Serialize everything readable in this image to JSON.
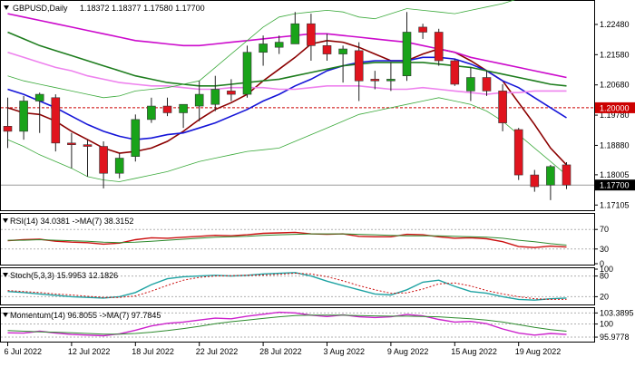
{
  "header": {
    "symbol": "GBPUSD,Daily",
    "ohlc": "1.18372 1.18377 1.17580 1.17700"
  },
  "colors": {
    "bull": "#19a319",
    "bear": "#e0141e",
    "wick": "#222222",
    "sma_fast": "#8b0000",
    "ma_blue": "#1515d8",
    "ma_magenta": "#cc0acc",
    "ma_green": "#1e7d1e",
    "ma_pink": "#ee82ee",
    "bollinger": "#3caa3c",
    "level_red": "#cc0000",
    "price_tag_bg": "#000000",
    "level_tag_bg": "#cc0000"
  },
  "price_axis": {
    "ylim": [
      1.1695,
      1.2318
    ],
    "ticks": [
      "1.22480",
      "1.21580",
      "1.20680",
      "1.19780",
      "1.18880",
      "1.18005",
      "1.17105"
    ],
    "tick_values": [
      1.2248,
      1.2158,
      1.2068,
      1.1978,
      1.1888,
      1.18005,
      1.17105
    ],
    "level_label": "1.20000",
    "level_value": 1.2,
    "current_label": "1.17700",
    "current_value": 1.177
  },
  "x_axis": {
    "labels": [
      "6 Jul 2022",
      "12 Jul 2022",
      "18 Jul 2022",
      "22 Jul 2022",
      "28 Jul 2022",
      "3 Aug 2022",
      "9 Aug 2022",
      "15 Aug 2022",
      "19 Aug 2022"
    ],
    "label_index": [
      0,
      4,
      8,
      12,
      16,
      20,
      24,
      28,
      32
    ]
  },
  "chart_data": [
    {
      "type": "candlestick",
      "ylim": [
        1.1695,
        1.2318
      ],
      "candles": [
        {
          "o": 1.1945,
          "h": 1.203,
          "l": 1.188,
          "c": 1.193
        },
        {
          "o": 1.193,
          "h": 1.2035,
          "l": 1.1905,
          "c": 1.202
        },
        {
          "o": 1.202,
          "h": 1.2045,
          "l": 1.1925,
          "c": 1.204
        },
        {
          "o": 1.203,
          "h": 1.204,
          "l": 1.187,
          "c": 1.1895
        },
        {
          "o": 1.1895,
          "h": 1.1925,
          "l": 1.182,
          "c": 1.189
        },
        {
          "o": 1.189,
          "h": 1.1905,
          "l": 1.1795,
          "c": 1.1885
        },
        {
          "o": 1.1885,
          "h": 1.19,
          "l": 1.176,
          "c": 1.1805
        },
        {
          "o": 1.1805,
          "h": 1.1865,
          "l": 1.179,
          "c": 1.185
        },
        {
          "o": 1.1855,
          "h": 1.198,
          "l": 1.184,
          "c": 1.1965
        },
        {
          "o": 1.1965,
          "h": 1.203,
          "l": 1.1955,
          "c": 1.2005
        },
        {
          "o": 1.2005,
          "h": 1.203,
          "l": 1.1975,
          "c": 1.1985
        },
        {
          "o": 1.1985,
          "h": 1.201,
          "l": 1.194,
          "c": 1.201
        },
        {
          "o": 1.2005,
          "h": 1.208,
          "l": 1.196,
          "c": 1.204
        },
        {
          "o": 1.201,
          "h": 1.2095,
          "l": 1.199,
          "c": 1.2055
        },
        {
          "o": 1.205,
          "h": 1.2085,
          "l": 1.202,
          "c": 1.204
        },
        {
          "o": 1.204,
          "h": 1.2185,
          "l": 1.203,
          "c": 1.2165
        },
        {
          "o": 1.2165,
          "h": 1.2215,
          "l": 1.2125,
          "c": 1.219
        },
        {
          "o": 1.218,
          "h": 1.2215,
          "l": 1.216,
          "c": 1.2195
        },
        {
          "o": 1.219,
          "h": 1.2285,
          "l": 1.219,
          "c": 1.225
        },
        {
          "o": 1.225,
          "h": 1.228,
          "l": 1.214,
          "c": 1.2185
        },
        {
          "o": 1.2185,
          "h": 1.222,
          "l": 1.214,
          "c": 1.216
        },
        {
          "o": 1.216,
          "h": 1.2185,
          "l": 1.2075,
          "c": 1.2175
        },
        {
          "o": 1.217,
          "h": 1.2195,
          "l": 1.202,
          "c": 1.208
        },
        {
          "o": 1.2085,
          "h": 1.211,
          "l": 1.2055,
          "c": 1.208
        },
        {
          "o": 1.208,
          "h": 1.2135,
          "l": 1.205,
          "c": 1.2085
        },
        {
          "o": 1.2095,
          "h": 1.2285,
          "l": 1.208,
          "c": 1.2225
        },
        {
          "o": 1.224,
          "h": 1.225,
          "l": 1.2205,
          "c": 1.2225
        },
        {
          "o": 1.2225,
          "h": 1.2235,
          "l": 1.2125,
          "c": 1.214
        },
        {
          "o": 1.214,
          "h": 1.2145,
          "l": 1.2065,
          "c": 1.207
        },
        {
          "o": 1.205,
          "h": 1.212,
          "l": 1.202,
          "c": 1.209
        },
        {
          "o": 1.209,
          "h": 1.211,
          "l": 1.2035,
          "c": 1.205
        },
        {
          "o": 1.205,
          "h": 1.207,
          "l": 1.193,
          "c": 1.1955
        },
        {
          "o": 1.1935,
          "h": 1.194,
          "l": 1.1785,
          "c": 1.18
        },
        {
          "o": 1.18,
          "h": 1.1815,
          "l": 1.175,
          "c": 1.1765
        },
        {
          "o": 1.177,
          "h": 1.183,
          "l": 1.1725,
          "c": 1.1825
        },
        {
          "o": 1.183,
          "h": 1.1838,
          "l": 1.1758,
          "c": 1.177
        }
      ],
      "lines": [
        {
          "role": "sma_fast",
          "values": [
            1.2,
            1.1985,
            1.198,
            1.196,
            1.193,
            1.1905,
            1.188,
            1.1865,
            1.187,
            1.188,
            1.19,
            1.193,
            1.1965,
            1.1995,
            1.2015,
            1.204,
            1.208,
            1.2115,
            1.215,
            1.219,
            1.22,
            1.2195,
            1.218,
            1.216,
            1.214,
            1.214,
            1.216,
            1.2175,
            1.2165,
            1.214,
            1.211,
            1.208,
            1.2015,
            1.195,
            1.188,
            1.183
          ]
        },
        {
          "role": "ma_blue",
          "values": [
            1.2055,
            1.204,
            1.202,
            1.2,
            1.1975,
            1.195,
            1.193,
            1.1915,
            1.1905,
            1.191,
            1.192,
            1.1925,
            1.194,
            1.1955,
            1.1975,
            1.1995,
            1.202,
            1.204,
            1.2065,
            1.2085,
            1.211,
            1.2125,
            1.2135,
            1.214,
            1.214,
            1.214,
            1.215,
            1.215,
            1.2145,
            1.213,
            1.211,
            1.208,
            1.206,
            1.203,
            1.2,
            1.197
          ]
        },
        {
          "role": "ma_magenta",
          "values": [
            1.228,
            1.227,
            1.226,
            1.225,
            1.224,
            1.223,
            1.222,
            1.221,
            1.22,
            1.2195,
            1.219,
            1.2185,
            1.2185,
            1.219,
            1.2195,
            1.22,
            1.2205,
            1.221,
            1.2215,
            1.222,
            1.222,
            1.2215,
            1.221,
            1.2205,
            1.22,
            1.2195,
            1.2185,
            1.2175,
            1.2165,
            1.215,
            1.214,
            1.213,
            1.212,
            1.211,
            1.21,
            1.209
          ]
        },
        {
          "role": "ma_green",
          "values": [
            1.2225,
            1.2205,
            1.2185,
            1.217,
            1.2155,
            1.214,
            1.2125,
            1.211,
            1.2095,
            1.2085,
            1.2075,
            1.207,
            1.2065,
            1.2065,
            1.207,
            1.2075,
            1.208,
            1.2085,
            1.2095,
            1.2105,
            1.2115,
            1.2125,
            1.213,
            1.2135,
            1.2135,
            1.2135,
            1.2135,
            1.213,
            1.2125,
            1.212,
            1.211,
            1.21,
            1.209,
            1.208,
            1.207,
            1.2065
          ]
        },
        {
          "role": "ma_pink",
          "values": [
            1.2165,
            1.215,
            1.2135,
            1.212,
            1.211,
            1.2095,
            1.2085,
            1.2075,
            1.207,
            1.2065,
            1.2065,
            1.206,
            1.2055,
            1.2055,
            1.206,
            1.206,
            1.206,
            1.2055,
            1.2055,
            1.206,
            1.2065,
            1.2065,
            1.2065,
            1.206,
            1.2055,
            1.2055,
            1.206,
            1.2055,
            1.205,
            1.2045,
            1.204,
            1.2045,
            1.2045,
            1.205,
            1.205,
            1.205
          ]
        },
        {
          "role": "bollinger",
          "values": [
            1.2095,
            1.208,
            1.207,
            1.206,
            1.205,
            1.204,
            1.203,
            1.2035,
            1.205,
            1.2055,
            1.206,
            1.207,
            1.208,
            1.212,
            1.216,
            1.22,
            1.224,
            1.227,
            1.228,
            1.2285,
            1.229,
            1.2285,
            1.227,
            1.2265,
            1.228,
            1.2295,
            1.229,
            1.2285,
            1.228,
            1.229,
            1.23,
            1.231,
            1.2325,
            1.233,
            1.2335,
            1.234
          ]
        },
        {
          "role": "bollinger",
          "values": [
            1.1905,
            1.1885,
            1.186,
            1.184,
            1.182,
            1.1795,
            1.1785,
            1.178,
            1.179,
            1.18,
            1.181,
            1.1825,
            1.184,
            1.185,
            1.186,
            1.187,
            1.1875,
            1.188,
            1.19,
            1.192,
            1.194,
            1.196,
            1.198,
            1.199,
            1.2,
            1.201,
            1.202,
            1.203,
            1.202,
            1.201,
            1.199,
            1.196,
            1.192,
            1.188,
            1.184,
            1.18
          ]
        }
      ]
    },
    {
      "type": "line",
      "title": "RSI(14) 34.0381 ->MA(7) 38.3152",
      "ylim": [
        0,
        100
      ],
      "ticks": [
        "70",
        "30",
        "0"
      ],
      "tick_values": [
        70,
        30,
        0
      ],
      "series": [
        {
          "role": "main",
          "values": [
            47,
            49,
            50,
            46,
            44,
            43,
            40,
            42,
            49,
            53,
            52,
            54,
            56,
            58,
            57,
            59,
            62,
            63,
            64,
            61,
            60,
            61,
            56,
            55,
            55,
            60,
            59,
            55,
            52,
            53,
            51,
            45,
            35,
            33,
            36,
            34
          ]
        },
        {
          "role": "signal",
          "values": [
            48,
            48,
            49,
            48,
            47,
            46,
            44,
            43,
            44,
            46,
            48,
            50,
            52,
            54,
            55,
            56,
            58,
            59,
            60,
            61,
            61,
            61,
            60,
            59,
            58,
            57,
            57,
            57,
            56,
            55,
            54,
            52,
            48,
            45,
            41,
            38
          ]
        }
      ]
    },
    {
      "type": "line",
      "title": "Stoch(5,3,3) 15.9953 12.1826",
      "ylim": [
        0,
        100
      ],
      "ticks": [
        "100",
        "80",
        "20"
      ],
      "tick_values": [
        100,
        80,
        20
      ],
      "series": [
        {
          "role": "main",
          "values": [
            35,
            32,
            28,
            24,
            20,
            18,
            16,
            20,
            32,
            55,
            72,
            78,
            80,
            82,
            80,
            82,
            86,
            88,
            90,
            80,
            65,
            52,
            40,
            28,
            25,
            40,
            62,
            68,
            50,
            35,
            30,
            20,
            12,
            10,
            14,
            16
          ]
        },
        {
          "role": "signal",
          "values": [
            38,
            35,
            32,
            28,
            25,
            21,
            18,
            18,
            22,
            36,
            53,
            68,
            76,
            80,
            81,
            82,
            83,
            85,
            88,
            86,
            78,
            66,
            52,
            40,
            30,
            31,
            42,
            57,
            60,
            51,
            38,
            28,
            20,
            14,
            12,
            12
          ]
        }
      ]
    },
    {
      "type": "line",
      "title": "Momentum(14) 96.8055 ->MA(7) 97.7845",
      "ylim": [
        94.6,
        104.6
      ],
      "ticks": [
        "103.3895",
        "100",
        "95.9778"
      ],
      "tick_values": [
        103.3895,
        100,
        95.9778
      ],
      "series": [
        {
          "role": "main",
          "values": [
            97.3,
            97.2,
            97.8,
            97.2,
            96.8,
            96.6,
            96.4,
            97.0,
            98.1,
            99.4,
            100.2,
            100.6,
            101.2,
            101.8,
            101.6,
            102.4,
            103.0,
            103.6,
            103.4,
            102.7,
            102.3,
            102.8,
            102.2,
            102.0,
            102.2,
            102.9,
            102.5,
            101.4,
            100.6,
            100.8,
            100.1,
            98.5,
            97.2,
            96.6,
            97.1,
            96.8
          ]
        },
        {
          "role": "signal",
          "values": [
            98.0,
            97.8,
            97.6,
            97.5,
            97.3,
            97.1,
            96.9,
            96.9,
            97.1,
            97.5,
            98.0,
            98.6,
            99.3,
            100.1,
            100.7,
            101.2,
            101.7,
            102.2,
            102.6,
            102.7,
            102.7,
            102.7,
            102.6,
            102.5,
            102.4,
            102.4,
            102.3,
            102.2,
            101.9,
            101.6,
            101.2,
            100.6,
            99.8,
            99.0,
            98.3,
            97.8
          ]
        }
      ]
    }
  ]
}
